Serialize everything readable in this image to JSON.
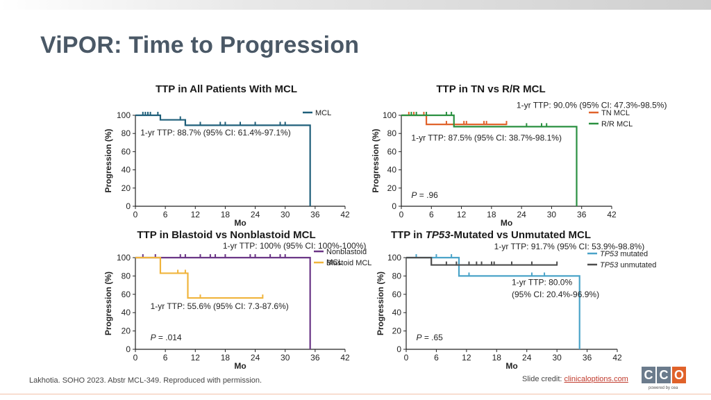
{
  "slide": {
    "title": "ViPOR: Time to Progression",
    "footer_citation": "Lakhotia. SOHO 2023. Abstr MCL-349. Reproduced with permission.",
    "credit_prefix": "Slide credit: ",
    "credit_link": "clinicaloptions.com",
    "logo_letters": [
      "C",
      "C",
      "O"
    ],
    "logo_tagline": "powered by cea"
  },
  "chart_data": [
    {
      "id": "all",
      "type": "line",
      "title": "TTP in All Patients With MCL",
      "xlabel": "Mo",
      "ylabel": "Progression (%)",
      "xlim": [
        0,
        42
      ],
      "ylim": [
        0,
        100
      ],
      "xticks": [
        0,
        6,
        12,
        18,
        24,
        30,
        36,
        42
      ],
      "yticks": [
        0,
        20,
        40,
        60,
        80,
        100
      ],
      "legend_position": "top-right",
      "series": [
        {
          "name": "MCL",
          "color": "#1f5f7a",
          "steps": [
            [
              0,
              100
            ],
            [
              5,
              100
            ],
            [
              5,
              95
            ],
            [
              10,
              95
            ],
            [
              10,
              89
            ],
            [
              35,
              89
            ],
            [
              35,
              0
            ]
          ],
          "censor": [
            1.5,
            2,
            2.5,
            3,
            4.5,
            9,
            10,
            13,
            17,
            18,
            21,
            24,
            29,
            30
          ]
        }
      ],
      "annotations": [
        {
          "text": "1-yr TTP: 88.7% (95% CI: 61.4%-97.1%)",
          "x": 1,
          "y": 78
        }
      ]
    },
    {
      "id": "tnrr",
      "type": "line",
      "title": "TTP in TN vs R/R MCL",
      "xlabel": "Mo",
      "ylabel": "Progression (%)",
      "xlim": [
        0,
        42
      ],
      "ylim": [
        0,
        100
      ],
      "xticks": [
        0,
        6,
        12,
        18,
        24,
        30,
        36,
        42
      ],
      "yticks": [
        0,
        20,
        40,
        60,
        80,
        100
      ],
      "legend_position": "top-right",
      "series": [
        {
          "name": "TN MCL",
          "color": "#e0622a",
          "steps": [
            [
              0,
              100
            ],
            [
              5,
              100
            ],
            [
              5,
              90
            ],
            [
              21,
              90
            ]
          ],
          "censor": [
            1.5,
            2.5,
            4.5,
            9,
            12.5,
            13,
            16.5,
            17,
            21
          ]
        },
        {
          "name": "R/R MCL",
          "color": "#2a9040",
          "steps": [
            [
              0,
              100
            ],
            [
              10.5,
              100
            ],
            [
              10.5,
              87.5
            ],
            [
              35,
              87.5
            ],
            [
              35,
              0
            ]
          ],
          "censor": [
            2,
            3,
            5,
            9,
            10,
            25,
            28,
            29
          ]
        }
      ],
      "annotations": [
        {
          "text": "1-yr TTP: 90.0% (95% CI: 47.3%-98.5%)",
          "x": 23,
          "y": 108
        },
        {
          "text": "1-yr TTP: 87.5% (95% CI: 38.7%-98.1%)",
          "x": 2,
          "y": 72
        },
        {
          "text": "P = .96",
          "x": 2,
          "y": 9
        }
      ]
    },
    {
      "id": "blast",
      "type": "line",
      "title": "TTP in Blastoid vs Nonblastoid MCL",
      "xlabel": "Mo",
      "ylabel": "Progression (%)",
      "xlim": [
        0,
        42
      ],
      "ylim": [
        0,
        100
      ],
      "xticks": [
        0,
        6,
        12,
        18,
        24,
        30,
        36,
        42
      ],
      "yticks": [
        0,
        20,
        40,
        60,
        80,
        100
      ],
      "legend_position": "top-right",
      "series": [
        {
          "name": "Nonblastoid\nMCL",
          "color": "#6a3585",
          "steps": [
            [
              0,
              100
            ],
            [
              35,
              100
            ],
            [
              35,
              0
            ]
          ],
          "censor": [
            1.5,
            4,
            9,
            10,
            13,
            15,
            16,
            18,
            23,
            24,
            27,
            29,
            30
          ]
        },
        {
          "name": "Blastoid MCL",
          "color": "#f0b43c",
          "steps": [
            [
              0,
              100
            ],
            [
              5,
              100
            ],
            [
              5,
              83
            ],
            [
              10.5,
              83
            ],
            [
              10.5,
              56
            ],
            [
              25.5,
              56
            ]
          ],
          "censor": [
            8.5,
            10,
            13,
            25.5
          ]
        }
      ],
      "annotations": [
        {
          "text": "1-yr TTP: 100% (95% CI: 100%-100%)",
          "x": 17.5,
          "y": 110
        },
        {
          "text": "1-yr TTP: 55.6% (95% CI: 7.3-87.6%)",
          "x": 3,
          "y": 44
        },
        {
          "text": "P = .014",
          "x": 3,
          "y": 10
        }
      ]
    },
    {
      "id": "tp53",
      "type": "line",
      "title_parts": [
        "TTP in ",
        "TP53",
        "-Mutated vs Unmutated MCL"
      ],
      "xlabel": "Mo",
      "ylabel": "Progression (%)",
      "xlim": [
        0,
        42
      ],
      "ylim": [
        0,
        100
      ],
      "xticks": [
        0,
        6,
        12,
        18,
        24,
        30,
        36,
        42
      ],
      "yticks": [
        0,
        20,
        40,
        60,
        80,
        100
      ],
      "legend_position": "top-right",
      "series": [
        {
          "name_italic": "TP53",
          "name": " mutated",
          "color": "#4aa3c8",
          "steps": [
            [
              0,
              100
            ],
            [
              10.5,
              100
            ],
            [
              10.5,
              80
            ],
            [
              34.5,
              80
            ],
            [
              34.5,
              0
            ]
          ],
          "censor": [
            2,
            6,
            9,
            12.5,
            25,
            27.5
          ]
        },
        {
          "name_italic": "TP53",
          "name": " unmutated",
          "color": "#4d4d4d",
          "steps": [
            [
              0,
              100
            ],
            [
              5,
              100
            ],
            [
              5,
              92
            ],
            [
              30,
              92
            ]
          ],
          "censor": [
            8,
            10,
            12.5,
            14,
            15,
            17,
            17.5,
            21,
            25,
            30
          ]
        }
      ],
      "annotations": [
        {
          "text": "1-yr TTP: 91.7% (95% CI: 53.9%-98.8%)",
          "x": 17.5,
          "y": 109
        },
        {
          "text": "1-yr TTP: 80.0%",
          "x": 21,
          "y": 70
        },
        {
          "text": "(95% CI: 20.4%-96.9%)",
          "x": 21,
          "y": 57
        },
        {
          "text": "P = .65",
          "x": 2,
          "y": 10
        }
      ]
    }
  ]
}
